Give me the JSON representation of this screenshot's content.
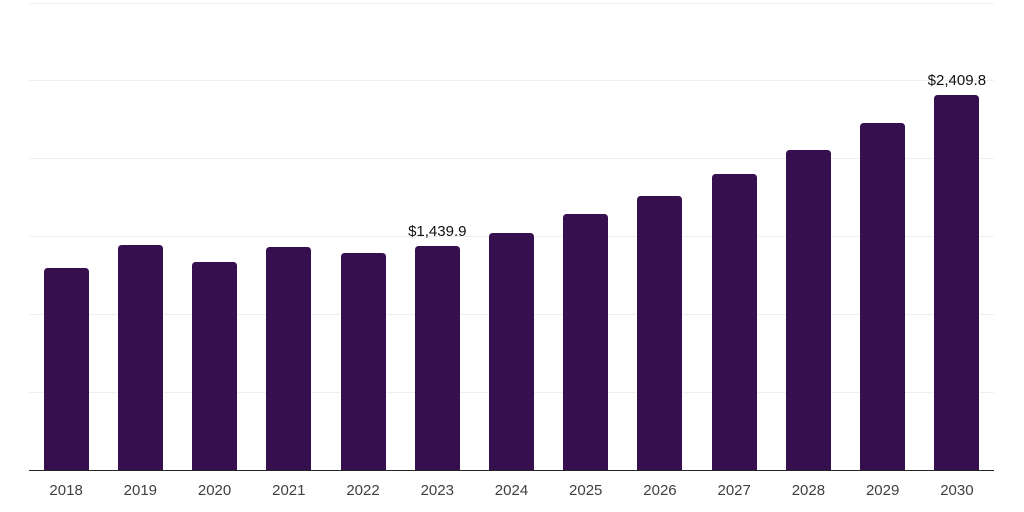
{
  "chart_data": {
    "type": "bar",
    "title": "",
    "xlabel": "",
    "ylabel": "",
    "categories": [
      "2018",
      "2019",
      "2020",
      "2021",
      "2022",
      "2023",
      "2024",
      "2025",
      "2026",
      "2027",
      "2028",
      "2029",
      "2030"
    ],
    "values": [
      1296,
      1445,
      1339,
      1434,
      1392,
      1439.9,
      1525,
      1642,
      1760,
      1901,
      2056,
      2231,
      2409.8
    ],
    "data_labels": [
      "",
      "",
      "",
      "",
      "",
      "$1,439.9",
      "",
      "",
      "",
      "",
      "",
      "",
      "$2,409.8"
    ],
    "ylim": [
      0,
      3000
    ],
    "grid_step": 500,
    "grid": "horizontal",
    "y_tick_labels_visible": false,
    "legend_position": "none"
  },
  "colors": {
    "bar": "#36104E",
    "grid_line": "#EFEFEF",
    "axis_line": "#262626",
    "tick_label": "#404040",
    "data_label": "#111111",
    "background": "#FFFFFF"
  }
}
